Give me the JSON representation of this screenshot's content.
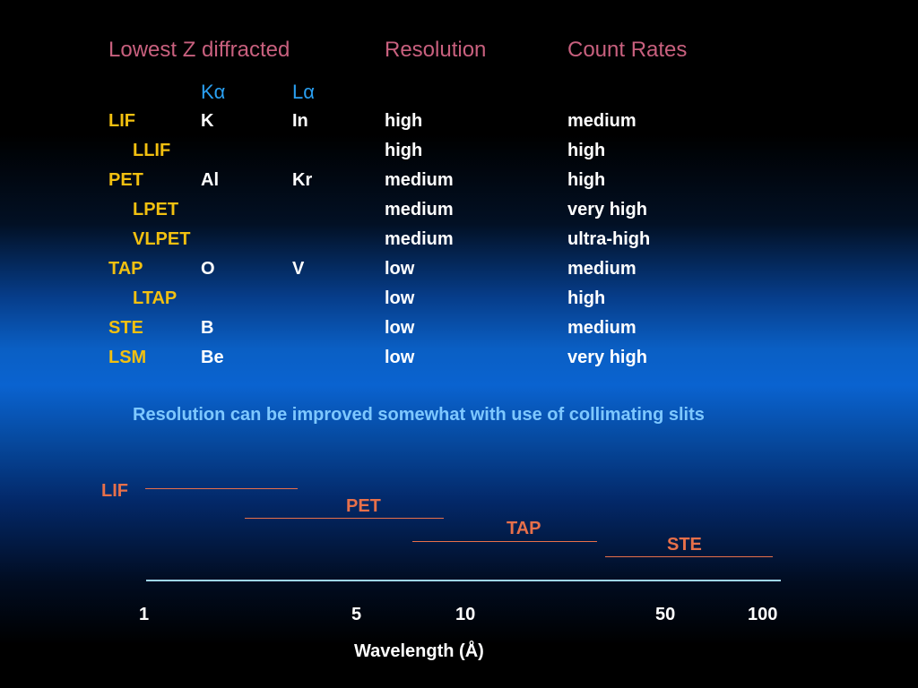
{
  "headers": {
    "lowest_z": "Lowest Z diffracted",
    "resolution": "Resolution",
    "count_rates": "Count Rates",
    "k_alpha": "Kα",
    "l_alpha": "Lα"
  },
  "rows": [
    {
      "crystal": "LIF",
      "k": "K",
      "l": "In",
      "resolution": "high",
      "count": "medium",
      "indent": false
    },
    {
      "crystal": "LLIF",
      "k": "",
      "l": "",
      "resolution": "high",
      "count": "high",
      "indent": true
    },
    {
      "crystal": "PET",
      "k": "Al",
      "l": "Kr",
      "resolution": "medium",
      "count": "high",
      "indent": false
    },
    {
      "crystal": "LPET",
      "k": "",
      "l": "",
      "resolution": "medium",
      "count": "very high",
      "indent": true
    },
    {
      "crystal": "VLPET",
      "k": "",
      "l": "",
      "resolution": "medium",
      "count": "ultra-high",
      "indent": true
    },
    {
      "crystal": "TAP",
      "k": "O",
      "l": "V",
      "resolution": "low",
      "count": "medium",
      "indent": false
    },
    {
      "crystal": "LTAP",
      "k": "",
      "l": "",
      "resolution": "low",
      "count": "high",
      "indent": true
    },
    {
      "crystal": "STE",
      "k": "B",
      "l": "",
      "resolution": "low",
      "count": "medium",
      "indent": false
    },
    {
      "crystal": "LSM",
      "k": "Be",
      "l": "",
      "resolution": "low",
      "count": "very high",
      "indent": false
    }
  ],
  "note": "Resolution can be improved somewhat with use of collimating slits",
  "chart": {
    "axis_title": "Wavelength (Å)",
    "ticks": [
      "1",
      "5",
      "10",
      "50",
      "100"
    ],
    "ranges": [
      {
        "name": "LIF",
        "color": "#e8704a"
      },
      {
        "name": "PET",
        "color": "#e8704a"
      },
      {
        "name": "TAP",
        "color": "#e8704a"
      },
      {
        "name": "STE",
        "color": "#e8704a"
      }
    ],
    "axis_color": "#9fd6f2"
  }
}
